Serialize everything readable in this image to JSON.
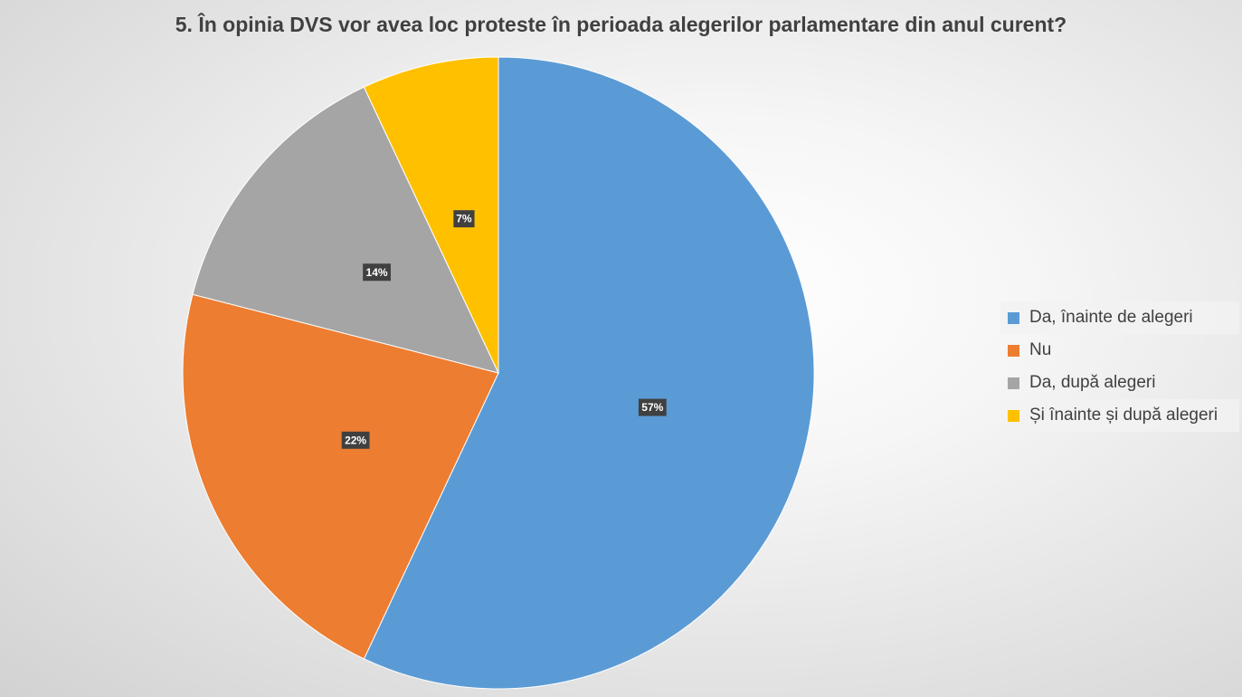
{
  "chart_data": {
    "type": "pie",
    "title": "5. În opinia DVS vor avea loc proteste în perioada alegerilor parlamentare din anul curent?",
    "categories": [
      "Da, înainte de alegeri",
      "Nu",
      "Da, după alegeri",
      "Și înainte și după alegeri"
    ],
    "values": [
      57,
      22,
      14,
      7
    ],
    "value_labels": [
      "57%",
      "22%",
      "14%",
      "7%"
    ],
    "colors": [
      "#5B9BD5",
      "#ED7D31",
      "#A5A5A5",
      "#FFC000"
    ],
    "legend_position": "right",
    "start_angle": "12 o'clock",
    "direction": "clockwise"
  },
  "legend": {
    "items": [
      {
        "label": "Da, înainte de alegeri",
        "color": "#5B9BD5"
      },
      {
        "label": "Nu",
        "color": "#ED7D31"
      },
      {
        "label": "Da, după alegeri",
        "color": "#A5A5A5"
      },
      {
        "label": "Și înainte și după alegeri",
        "color": "#FFC000"
      }
    ]
  }
}
